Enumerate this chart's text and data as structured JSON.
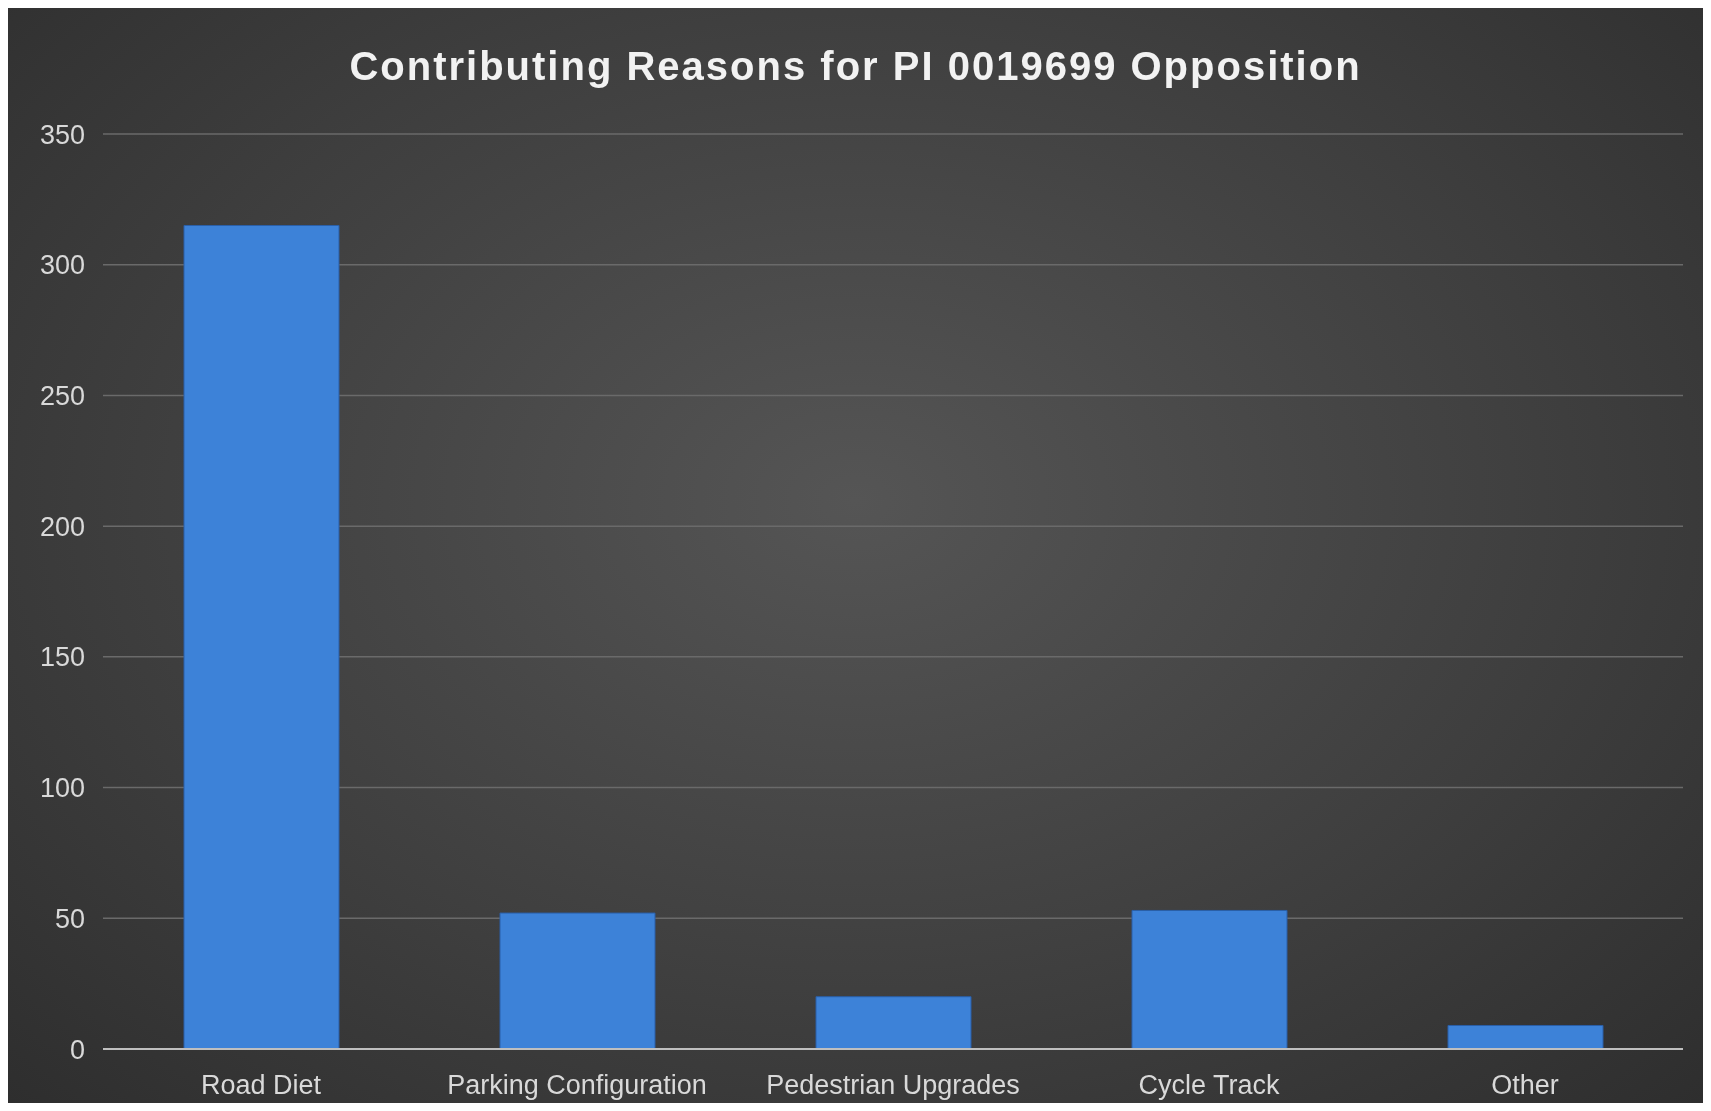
{
  "chart_data": {
    "type": "bar",
    "title": "Contributing Reasons for PI 0019699 Opposition",
    "categories": [
      "Road Diet",
      "Parking Configuration",
      "Pedestrian Upgrades",
      "Cycle Track",
      "Other"
    ],
    "values": [
      315,
      52,
      20,
      53,
      9
    ],
    "color": "#3d82d8",
    "ylim": [
      0,
      350
    ],
    "yticks": [
      0,
      50,
      100,
      150,
      200,
      250,
      300,
      350
    ],
    "grid": "y"
  }
}
